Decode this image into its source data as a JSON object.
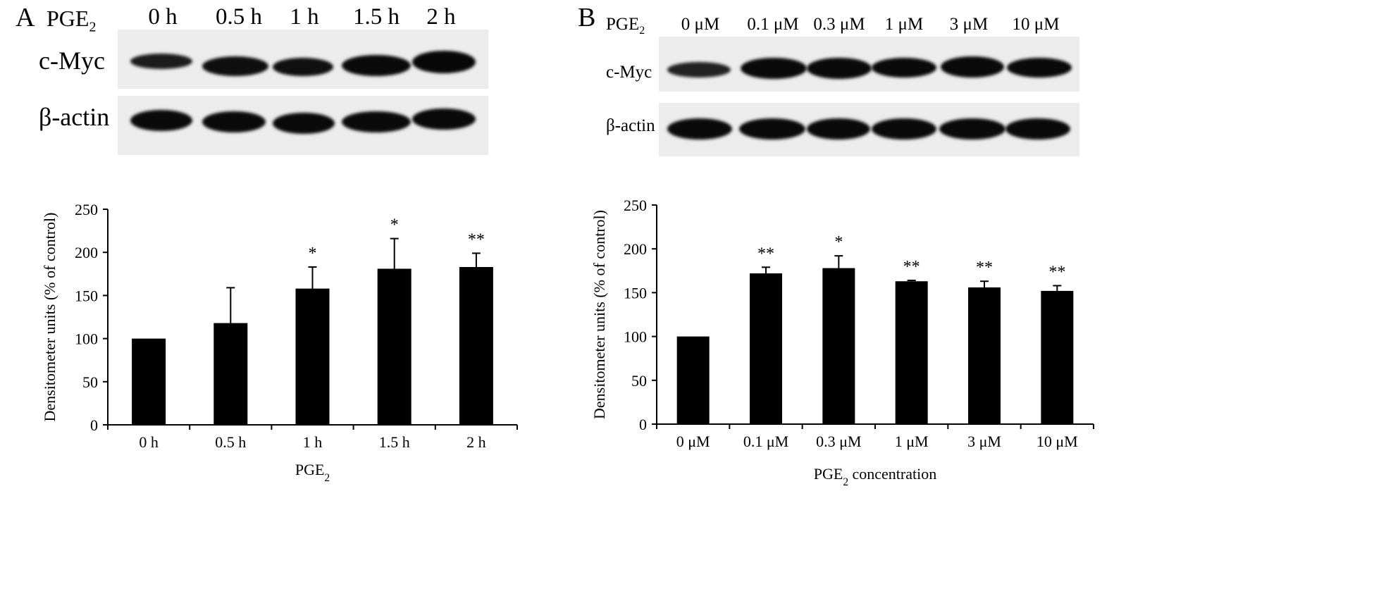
{
  "panelA": {
    "letter": "A",
    "blot": {
      "treatment": "PGE",
      "treatment_sub": "2",
      "lanes": [
        "0 h",
        "0.5 h",
        "1 h",
        "1.5 h",
        "2 h"
      ],
      "rows": [
        "c-Myc",
        "β-actin"
      ]
    }
  },
  "panelB": {
    "letter": "B",
    "blot": {
      "treatment": "PGE",
      "treatment_sub": "2",
      "lanes": [
        "0 μM",
        "0.1 μM",
        "0.3 μM",
        "1 μM",
        "3 μM",
        "10 μM"
      ],
      "rows": [
        "c-Myc",
        "β-actin"
      ]
    }
  },
  "chart_data": [
    {
      "type": "bar",
      "panel": "A",
      "categories": [
        "0 h",
        "0.5 h",
        "1 h",
        "1.5 h",
        "2 h"
      ],
      "values": [
        100,
        118,
        158,
        181,
        183
      ],
      "error": [
        0,
        41,
        25,
        35,
        16
      ],
      "significance": [
        "",
        "",
        "*",
        "*",
        "**"
      ],
      "xlabel": "PGE",
      "xlabel_sub": "2",
      "xlabel_suffix": "",
      "ylabel": "Densitometer units (% of control)",
      "ylim": [
        0,
        250
      ],
      "yticks": [
        0,
        50,
        100,
        150,
        200,
        250
      ],
      "bar_color": "#000000"
    },
    {
      "type": "bar",
      "panel": "B",
      "categories": [
        "0 μM",
        "0.1 μM",
        "0.3 μM",
        "1 μM",
        "3 μM",
        "10 μM"
      ],
      "values": [
        100,
        172,
        178,
        163,
        156,
        152
      ],
      "error": [
        0,
        7,
        14,
        1,
        7,
        6
      ],
      "significance": [
        "",
        "**",
        "*",
        "**",
        "**",
        "**"
      ],
      "xlabel": "PGE",
      "xlabel_sub": "2",
      "xlabel_suffix": " concentration",
      "ylabel": "Densitometer units (% of control)",
      "ylim": [
        0,
        250
      ],
      "yticks": [
        0,
        50,
        100,
        150,
        200,
        250
      ],
      "bar_color": "#000000"
    }
  ]
}
